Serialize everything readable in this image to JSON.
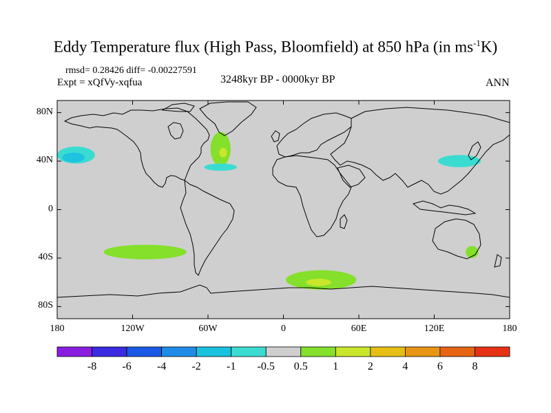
{
  "title": {
    "prefix": "Eddy Temperature flux (High Pass, Bloomfield) at 850 hPa (in ms",
    "exponent": "-1",
    "suffix": "K)"
  },
  "subtitle": {
    "stats": "rmsd= 0.28426 diff= -0.00227591",
    "expt": "Expt = xQfVy-xqfua",
    "period": "3248kyr BP - 0000kyr BP",
    "season": "ANN"
  },
  "axes": {
    "lat_labels": [
      "80N",
      "40N",
      "0",
      "40S",
      "80S"
    ],
    "lat_values": [
      80,
      40,
      0,
      -40,
      -80
    ],
    "lon_labels": [
      "180",
      "120W",
      "60W",
      "0",
      "60E",
      "120E",
      "180"
    ],
    "lon_values": [
      -180,
      -120,
      -60,
      0,
      60,
      120,
      180
    ],
    "lat_range": [
      -90,
      90
    ],
    "lon_range": [
      -180,
      180
    ]
  },
  "colorbar": {
    "labels": [
      "-8",
      "-6",
      "-4",
      "-2",
      "-1",
      "-0.5",
      "0.5",
      "1",
      "2",
      "4",
      "6",
      "8"
    ],
    "colors": [
      "#8a1ee0",
      "#3a2ae0",
      "#1a5ae6",
      "#1e8ce6",
      "#19c3e0",
      "#3adcd2",
      "#cfcfcf",
      "#84e02a",
      "#cae62a",
      "#e6be14",
      "#e69614",
      "#e66414",
      "#e63214"
    ]
  },
  "map_colors": {
    "background": "#cfcfcf",
    "pos1": "#84e02a",
    "pos2": "#cae62a",
    "neg1": "#3adcd2",
    "neg2": "#1ec3e0",
    "coast": "#000000"
  },
  "regions": [
    {
      "name": "north-pacific-cyan",
      "sign": "neg",
      "center": [
        -165,
        45
      ],
      "rx": 15,
      "ry": 7
    },
    {
      "name": "north-pacific-core",
      "sign": "neg2",
      "center": [
        -167,
        43
      ],
      "rx": 9,
      "ry": 4
    },
    {
      "name": "labrador-green",
      "sign": "pos",
      "center": [
        -50,
        50
      ],
      "rx": 8,
      "ry": 14
    },
    {
      "name": "labrador-yellow",
      "sign": "pos2",
      "center": [
        -48,
        47
      ],
      "rx": 3,
      "ry": 4
    },
    {
      "name": "north-atlantic-cyan",
      "sign": "neg",
      "center": [
        -50,
        35
      ],
      "rx": 13,
      "ry": 3
    },
    {
      "name": "south-pacific-green",
      "sign": "pos",
      "center": [
        -110,
        -35
      ],
      "rx": 33,
      "ry": 6
    },
    {
      "name": "south-atlantic-green",
      "sign": "pos",
      "center": [
        30,
        -58
      ],
      "rx": 28,
      "ry": 8
    },
    {
      "name": "south-atlantic-yellow",
      "sign": "pos2",
      "center": [
        28,
        -60
      ],
      "rx": 10,
      "ry": 3
    },
    {
      "name": "australia-green",
      "sign": "pos",
      "center": [
        150,
        -35
      ],
      "rx": 5,
      "ry": 5
    },
    {
      "name": "west-pacific-cyan",
      "sign": "neg",
      "center": [
        140,
        40
      ],
      "rx": 17,
      "ry": 5
    }
  ]
}
